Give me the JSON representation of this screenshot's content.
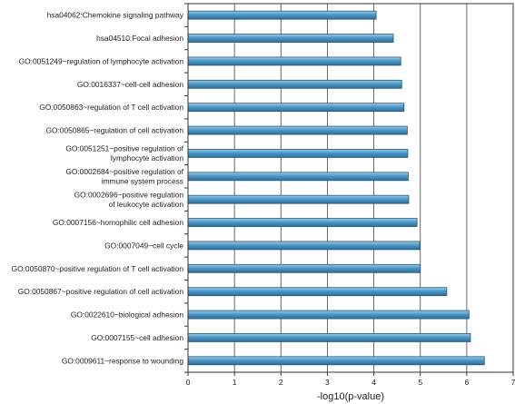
{
  "chart_data": {
    "type": "bar",
    "orientation": "horizontal",
    "xlabel": "-log10(p-value)",
    "ylabel": "",
    "title": "",
    "xlim": [
      0,
      7
    ],
    "xticks": [
      "0",
      "1",
      "2",
      "3",
      "4",
      "5",
      "6",
      "7"
    ],
    "grid": "vertical",
    "bar_color": "#4f97c4",
    "categories": [
      "hsa04062:Chemokine signaling pathway",
      "hsa04510:Focal adhesion",
      "GO:0051249~regulation of lymphocyte activation",
      "GO:0016337~cell-cell adhesion",
      "GO:0050863~regulation of T cell activation",
      "GO:0050865~regulation of cell activation",
      "GO:0051251~positive regulation of\nlymphocyte activation",
      "GO:0002684~positive regulation of\nimmune system process",
      "GO:0002696~positive regulation\nof leukocyte activation",
      "GO:0007156~homophilic cell adhesion",
      "GO:0007049~cell cycle",
      "GO:0050870~positive regulation of T cell activation",
      "GO:0050867~positive regulation of cell activation",
      "GO:0022610~biological adhesion",
      "GO:0007155~cell adhesion",
      "GO:0009611~response to wounding"
    ],
    "values": [
      4.05,
      4.42,
      4.58,
      4.6,
      4.65,
      4.72,
      4.73,
      4.74,
      4.75,
      4.93,
      4.99,
      5.0,
      5.57,
      6.05,
      6.08,
      6.38
    ]
  }
}
